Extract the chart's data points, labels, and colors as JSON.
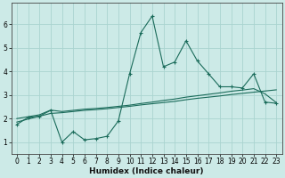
{
  "xlabel": "Humidex (Indice chaleur)",
  "bg_color": "#cceae7",
  "grid_color": "#aad4d0",
  "line_color": "#1a6b5a",
  "xlim": [
    -0.5,
    23.5
  ],
  "ylim": [
    0.5,
    6.9
  ],
  "xticks": [
    0,
    1,
    2,
    3,
    4,
    5,
    6,
    7,
    8,
    9,
    10,
    11,
    12,
    13,
    14,
    15,
    16,
    17,
    18,
    19,
    20,
    21,
    22,
    23
  ],
  "yticks": [
    1,
    2,
    3,
    4,
    5,
    6
  ],
  "series1_x": [
    0,
    1,
    2,
    3,
    4,
    5,
    6,
    7,
    8,
    9,
    10,
    11,
    12,
    13,
    14,
    15,
    16,
    17,
    18,
    19,
    20,
    21,
    22,
    23
  ],
  "series1_y": [
    1.75,
    2.05,
    2.1,
    2.35,
    1.0,
    1.45,
    1.1,
    1.15,
    1.25,
    1.9,
    3.9,
    5.65,
    6.35,
    4.2,
    4.4,
    5.3,
    4.45,
    3.9,
    3.35,
    3.35,
    3.3,
    3.9,
    2.7,
    2.65
  ],
  "series2_x": [
    0,
    1,
    2,
    3,
    4,
    5,
    6,
    7,
    8,
    9,
    10,
    11,
    12,
    13,
    14,
    15,
    16,
    17,
    18,
    19,
    20,
    21,
    22,
    23
  ],
  "series2_y": [
    1.85,
    1.98,
    2.1,
    2.22,
    2.25,
    2.3,
    2.35,
    2.38,
    2.42,
    2.47,
    2.52,
    2.58,
    2.63,
    2.68,
    2.73,
    2.8,
    2.86,
    2.91,
    2.96,
    3.02,
    3.07,
    3.12,
    3.17,
    3.22
  ],
  "series3_x": [
    0,
    1,
    2,
    3,
    4,
    5,
    6,
    7,
    8,
    9,
    10,
    11,
    12,
    13,
    14,
    15,
    16,
    17,
    18,
    19,
    20,
    21,
    22,
    23
  ],
  "series3_y": [
    2.0,
    2.08,
    2.16,
    2.36,
    2.3,
    2.35,
    2.4,
    2.43,
    2.47,
    2.52,
    2.57,
    2.64,
    2.7,
    2.77,
    2.83,
    2.91,
    2.97,
    3.03,
    3.09,
    3.16,
    3.21,
    3.27,
    3.05,
    2.68
  ]
}
